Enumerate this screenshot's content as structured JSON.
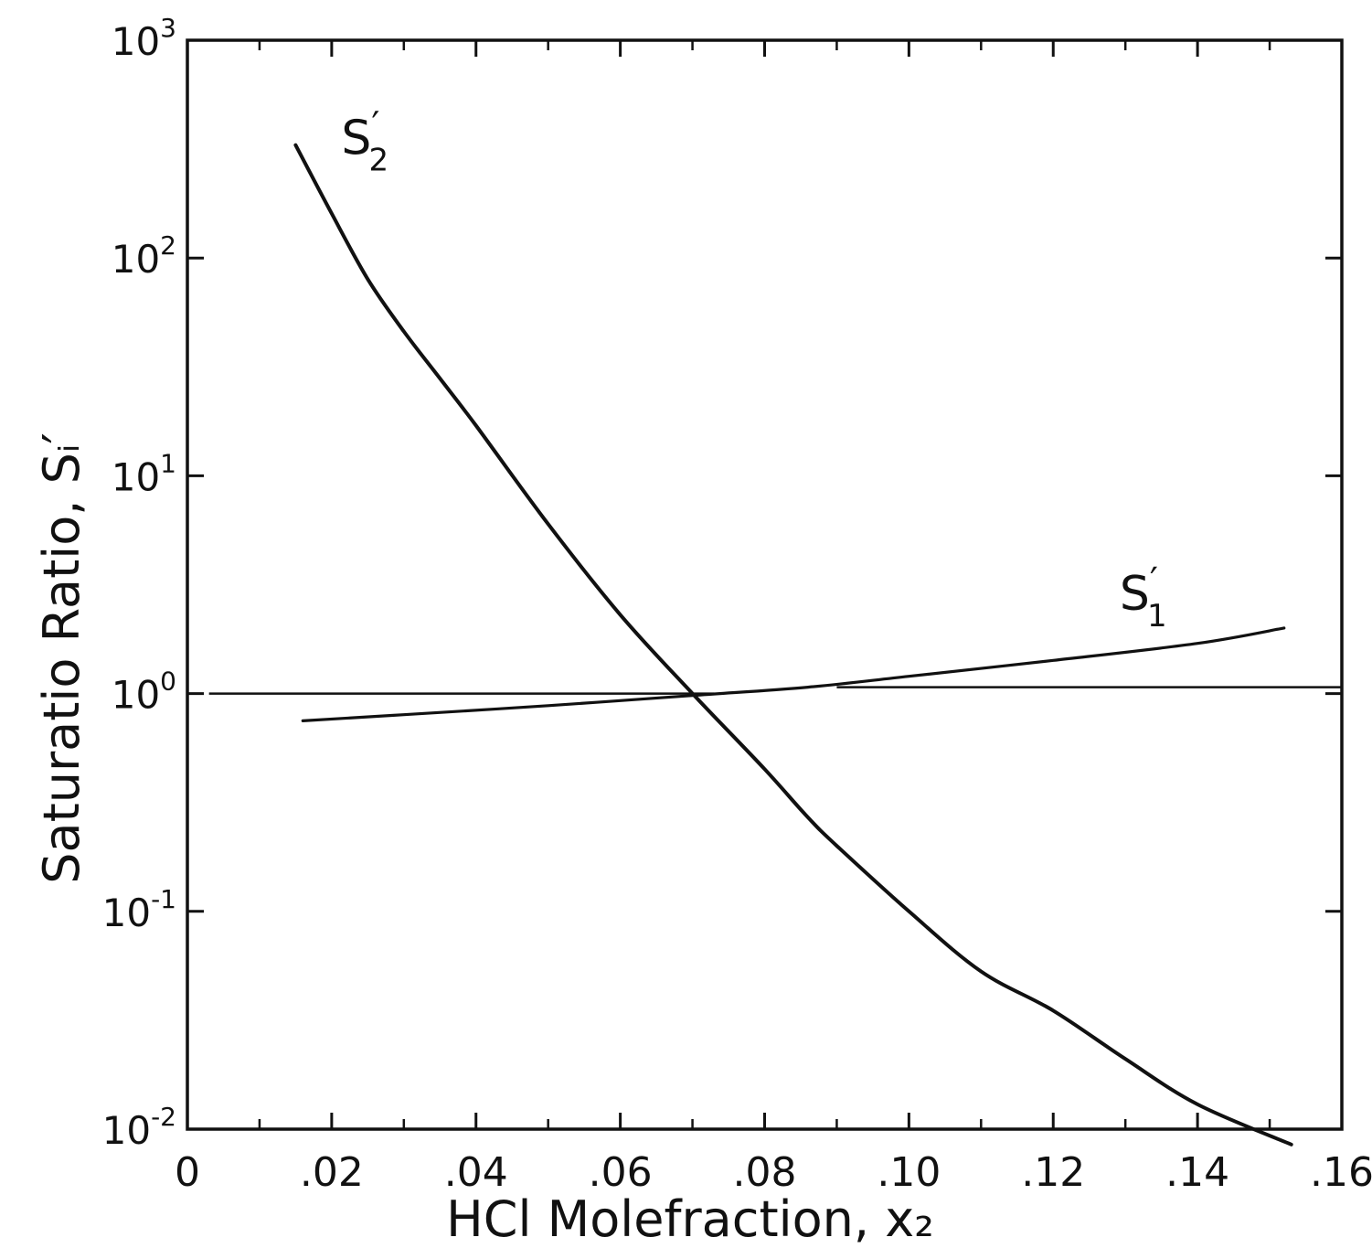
{
  "chart_data": {
    "type": "line",
    "title": "",
    "xlabel": "HCl Molefraction, x₂",
    "ylabel": "Saturatio Ratio, Sᵢ′",
    "x_scale": "linear",
    "y_scale": "log",
    "xlim": [
      0,
      0.16
    ],
    "ylim": [
      0.01,
      1000
    ],
    "x_ticks": [
      0,
      0.02,
      0.04,
      0.06,
      0.08,
      0.1,
      0.12,
      0.14,
      0.16
    ],
    "x_tick_labels": [
      "0",
      ".02",
      ".04",
      ".06",
      ".08",
      ".10",
      ".12",
      ".14",
      ".16"
    ],
    "x_minor_ticks": [
      0.01,
      0.03,
      0.05,
      0.07,
      0.09,
      0.11,
      0.13,
      0.15
    ],
    "y_ticks": [
      0.01,
      0.1,
      1,
      10,
      100,
      1000
    ],
    "y_tick_labels": [
      {
        "base": "10",
        "exp": "-2"
      },
      {
        "base": "10",
        "exp": "-1"
      },
      {
        "base": "10",
        "exp": "0"
      },
      {
        "base": "10",
        "exp": "1"
      },
      {
        "base": "10",
        "exp": "2"
      },
      {
        "base": "10",
        "exp": "3"
      }
    ],
    "grid": false,
    "legend": "none",
    "series": [
      {
        "name": "S₂′",
        "label_base": "S",
        "label_sub": "2",
        "label_sup": "′",
        "x": [
          0.015,
          0.02,
          0.025,
          0.03,
          0.035,
          0.04,
          0.05,
          0.06,
          0.07,
          0.08,
          0.086,
          0.09,
          0.1,
          0.11,
          0.12,
          0.13,
          0.14,
          0.153
        ],
        "y": [
          330,
          160,
          80,
          46,
          28,
          17,
          6.0,
          2.3,
          1.0,
          0.45,
          0.27,
          0.2,
          0.1,
          0.053,
          0.035,
          0.021,
          0.013,
          0.0085
        ]
      },
      {
        "name": "S₁′",
        "label_base": "S",
        "label_sub": "1",
        "label_sup": "′",
        "x": [
          0.016,
          0.03,
          0.05,
          0.07,
          0.086,
          0.1,
          0.12,
          0.14,
          0.152
        ],
        "y": [
          0.75,
          0.8,
          0.88,
          0.98,
          1.07,
          1.2,
          1.42,
          1.7,
          2.0
        ]
      }
    ],
    "reference_lines": [
      {
        "y": 1.0,
        "x_from": 0.003,
        "x_to": 0.073
      },
      {
        "y": 1.07,
        "x_from": 0.09,
        "x_to": 0.16
      }
    ]
  }
}
